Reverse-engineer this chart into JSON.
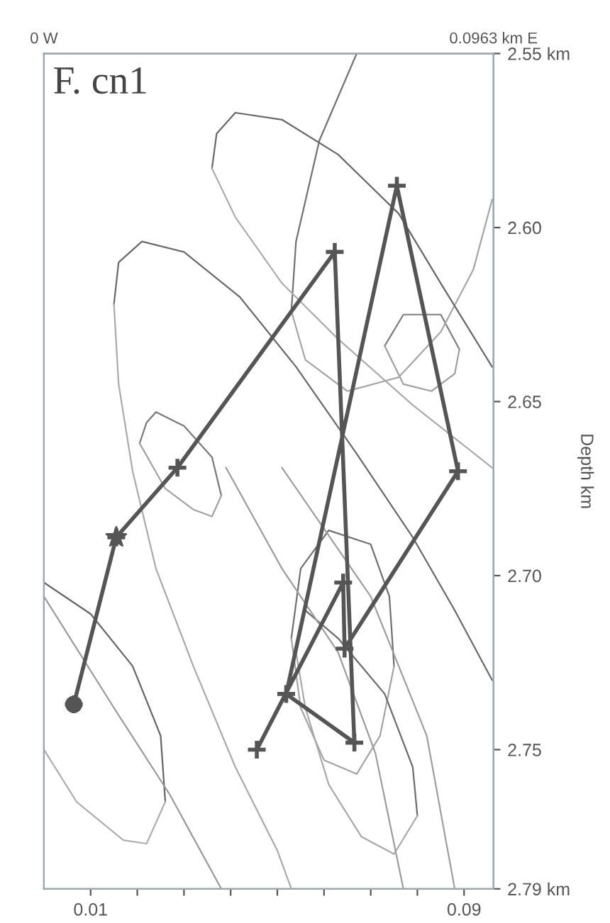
{
  "chart_data": {
    "type": "line",
    "title": "F. cn1",
    "ylabel": "Depth km",
    "xlim": [
      0,
      0.0963
    ],
    "ylim": [
      2.79,
      2.55
    ],
    "xticks": [
      {
        "value": 0.01,
        "label": "0.01"
      },
      {
        "value": 0.02,
        "label": null
      },
      {
        "value": 0.03,
        "label": null
      },
      {
        "value": 0.04,
        "label": null
      },
      {
        "value": 0.05,
        "label": null
      },
      {
        "value": 0.06,
        "label": null
      },
      {
        "value": 0.07,
        "label": null
      },
      {
        "value": 0.08,
        "label": null
      },
      {
        "value": 0.09,
        "label": "0.09"
      }
    ],
    "x2lim": [
      0,
      0.0963
    ],
    "x2ticks": [
      {
        "value": 0,
        "label": "0 W"
      },
      {
        "value": 0.0963,
        "label": "0.0963 km E"
      }
    ],
    "yticks": [
      {
        "value": 2.55,
        "label": "2.55 km"
      },
      {
        "value": 2.6,
        "label": "2.60"
      },
      {
        "value": 2.65,
        "label": "2.65"
      },
      {
        "value": 2.7,
        "label": "2.70"
      },
      {
        "value": 2.75,
        "label": "2.75"
      },
      {
        "value": 2.79,
        "label": "2.79 km"
      }
    ],
    "grid": false,
    "legend": false,
    "line_style": "solid",
    "series": [
      {
        "color": "#7a7a7a",
        "marker": "none",
        "x": [
          0.0205,
          0.022,
          0.024,
          0.03,
          0.036,
          0.038
        ],
        "values": [
          2.662,
          2.656,
          2.653,
          2.657,
          2.666,
          2.677
        ]
      },
      {
        "color": "#a2a2a2",
        "marker": "none",
        "x": [
          0.0205,
          0.026,
          0.032,
          0.036,
          0.038
        ],
        "values": [
          2.662,
          2.675,
          2.681,
          2.683,
          2.677
        ]
      },
      {
        "color": "#7e7e7e",
        "marker": "none",
        "x": [
          0.073,
          0.077,
          0.085,
          0.089
        ],
        "values": [
          2.634,
          2.625,
          2.625,
          2.635
        ]
      },
      {
        "color": "#a0a0a0",
        "marker": "none",
        "x": [
          0.073,
          0.077,
          0.083,
          0.088,
          0.089
        ],
        "values": [
          2.634,
          2.645,
          2.647,
          2.642,
          2.635
        ]
      },
      {
        "color": "#707070",
        "marker": "none",
        "x": [
          0.053,
          0.055,
          0.061,
          0.07,
          0.074,
          0.075
        ],
        "values": [
          2.718,
          2.698,
          2.687,
          2.691,
          2.706,
          2.726
        ]
      },
      {
        "color": "#a4a4a4",
        "marker": "none",
        "x": [
          0.053,
          0.055,
          0.06,
          0.067,
          0.072,
          0.075
        ],
        "values": [
          2.718,
          2.738,
          2.753,
          2.757,
          2.746,
          2.726
        ]
      },
      {
        "color": "#6c6c6c",
        "marker": "none",
        "x": [
          0.054,
          0.056,
          0.063,
          0.073,
          0.079,
          0.08
        ],
        "values": [
          2.722,
          2.71,
          2.718,
          2.734,
          2.755,
          2.769
        ]
      },
      {
        "color": "#a8a8a8",
        "marker": "none",
        "x": [
          0.054,
          0.056,
          0.061,
          0.068,
          0.075,
          0.08
        ],
        "values": [
          2.722,
          2.738,
          2.76,
          2.775,
          2.78,
          2.769
        ]
      },
      {
        "color": "#666666",
        "marker": "none",
        "x": [
          0.0,
          0.01,
          0.019,
          0.025,
          0.026
        ],
        "values": [
          2.702,
          2.711,
          2.726,
          2.746,
          2.765
        ]
      },
      {
        "color": "#aeaeae",
        "marker": "none",
        "x": [
          0.0,
          0.007,
          0.017,
          0.022,
          0.026
        ],
        "values": [
          2.75,
          2.765,
          2.776,
          2.777,
          2.765
        ]
      },
      {
        "color": "#727272",
        "marker": "none",
        "x": [
          0.053,
          0.054,
          0.059,
          0.067
        ],
        "values": [
          2.624,
          2.604,
          2.575,
          2.55
        ]
      },
      {
        "color": "#a6a6a6",
        "marker": "none",
        "x": [
          0.053,
          0.056,
          0.065,
          0.076,
          0.085,
          0.092,
          0.096
        ],
        "values": [
          2.624,
          2.638,
          2.647,
          2.643,
          2.63,
          2.612,
          2.592
        ]
      },
      {
        "color": "#686868",
        "marker": "none",
        "x": [
          0.036,
          0.037,
          0.041,
          0.051,
          0.063,
          0.076,
          0.085,
          0.096
        ],
        "values": [
          2.583,
          2.573,
          2.567,
          2.569,
          2.579,
          2.596,
          2.616,
          2.64
        ]
      },
      {
        "color": "#acacac",
        "marker": "none",
        "x": [
          0.036,
          0.041,
          0.051,
          0.063,
          0.079,
          0.096
        ],
        "values": [
          2.583,
          2.597,
          2.616,
          2.632,
          2.651,
          2.669
        ]
      },
      {
        "color": "#6a6a6a",
        "marker": "none",
        "x": [
          0.015,
          0.016,
          0.021,
          0.03,
          0.042,
          0.054,
          0.067,
          0.079,
          0.088,
          0.096
        ],
        "values": [
          2.622,
          2.61,
          2.604,
          2.607,
          2.62,
          2.64,
          2.665,
          2.689,
          2.71,
          2.73
        ]
      },
      {
        "color": "#aaaaaa",
        "marker": "none",
        "x": [
          0.015,
          0.016,
          0.019,
          0.024,
          0.032,
          0.041,
          0.05,
          0.053
        ],
        "values": [
          2.622,
          2.645,
          2.67,
          2.698,
          2.726,
          2.755,
          2.779,
          2.79
        ]
      },
      {
        "color": "#9a9a9a",
        "marker": "none",
        "x": [
          0.0,
          0.015,
          0.027,
          0.038
        ],
        "values": [
          2.706,
          2.738,
          2.763,
          2.79
        ]
      },
      {
        "color": "#9c9c9c",
        "marker": "none",
        "x": [
          0.039,
          0.051,
          0.063,
          0.071,
          0.077
        ],
        "values": [
          2.669,
          2.698,
          2.722,
          2.751,
          2.79
        ]
      },
      {
        "color": "#9e9e9e",
        "marker": "none",
        "x": [
          0.051,
          0.07,
          0.082,
          0.088
        ],
        "values": [
          2.669,
          2.706,
          2.746,
          2.79
        ]
      },
      {
        "color": "#555555",
        "marker": "cross",
        "x": [
          0.0064,
          0.0155,
          0.0286,
          0.0623,
          0.0665,
          0.0519,
          0.0756,
          0.0887,
          0.0644,
          0.0641,
          0.0456
        ],
        "values": [
          2.737,
          2.689,
          2.669,
          2.607,
          2.748,
          2.734,
          2.588,
          2.67,
          2.721,
          2.702,
          2.75
        ]
      },
      {
        "type": "scatter",
        "color": "#555555",
        "marker": "circle",
        "x": [
          0.0064
        ],
        "values": [
          2.737
        ]
      },
      {
        "type": "scatter",
        "color": "#555555",
        "marker": "star",
        "x": [
          0.0155
        ],
        "values": [
          2.689
        ]
      }
    ]
  }
}
